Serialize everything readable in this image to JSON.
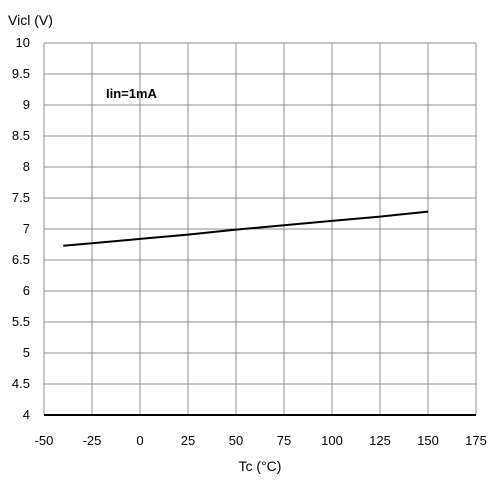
{
  "chart_data": {
    "type": "line",
    "title": "",
    "xlabel": "Tc (°C)",
    "ylabel": "Vicl (V)",
    "xlim": [
      -50,
      175
    ],
    "ylim": [
      4,
      10
    ],
    "xticks": [
      "-50",
      "-25",
      "0",
      "25",
      "50",
      "75",
      "100",
      "125",
      "150",
      "175"
    ],
    "yticks": [
      "4",
      "4.5",
      "5",
      "5.5",
      "6",
      "6.5",
      "7",
      "7.5",
      "8",
      "8.5",
      "9",
      "9.5",
      "10"
    ],
    "grid": true,
    "annotations": [
      "Iin=1mA"
    ],
    "series": [
      {
        "color": "#000000",
        "x": [
          -40,
          -25,
          0,
          25,
          50,
          75,
          100,
          125,
          150
        ],
        "y": [
          6.73,
          6.77,
          6.84,
          6.91,
          6.99,
          7.06,
          7.13,
          7.2,
          7.28
        ]
      }
    ]
  }
}
